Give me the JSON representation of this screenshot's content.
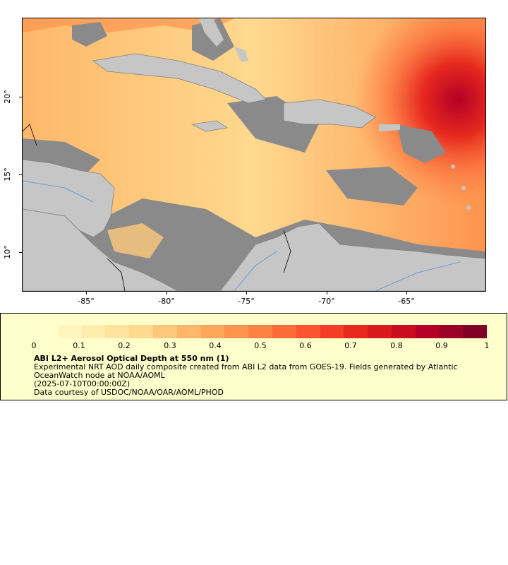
{
  "map": {
    "longitude_labels": [
      "-85°",
      "-80°",
      "-75°",
      "-70°",
      "-65°"
    ],
    "latitude_labels": [
      "20°",
      "15°",
      "10°"
    ],
    "colors": {
      "land": "#c6c6c6",
      "no_data": "#8a8a8a",
      "borders": "#7f7f7f",
      "rivers": "#5a8fd0",
      "coast": "#000000"
    }
  },
  "legend": {
    "colorbar_colors": [
      "#ffffcc",
      "#fff5bd",
      "#ffedad",
      "#fee49f",
      "#fed98e",
      "#fec87c",
      "#feb76a",
      "#fea65a",
      "#fd944e",
      "#fd8243",
      "#fc6c3a",
      "#fa5430",
      "#f43d25",
      "#e7291e",
      "#d91a1c",
      "#c90c1e",
      "#b40026",
      "#9b0026",
      "#800026"
    ],
    "tick_labels": [
      "0",
      "0.1",
      "0.2",
      "0.3",
      "0.4",
      "0.5",
      "0.6",
      "0.7",
      "0.8",
      "0.9",
      "1"
    ],
    "title": "ABI L2+ Aerosol Optical Depth at 550 nm (1)",
    "description": "Experimental NRT AOD daily composite created from ABI L2 data from GOES-19. Fields generated by Atlantic OceanWatch node at NOAA/AOML",
    "time": "(2025-07-10T00:00:00Z)",
    "credit": "Data courtesy of USDOC/NOAA/OAR/AOML/PHOD"
  }
}
